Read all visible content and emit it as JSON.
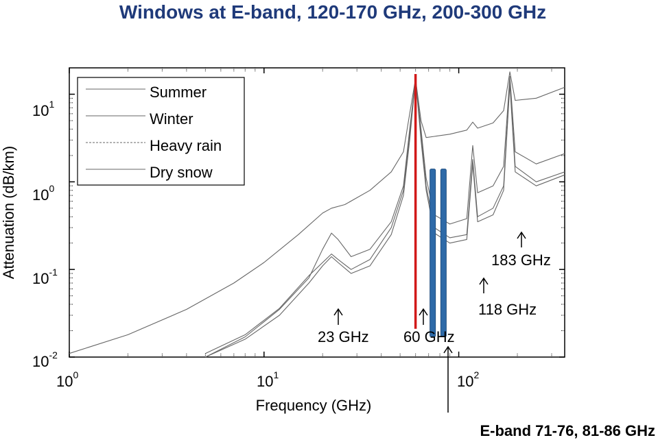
{
  "chart_data": {
    "type": "line",
    "title": "Windows at E-band, 120-170 GHz, 200-300 GHz",
    "xlabel": "Frequency (GHz)",
    "ylabel": "Attenuation (dB/km)",
    "x_scale": "log",
    "y_scale": "log",
    "xlim": [
      1,
      350
    ],
    "ylim": [
      0.01,
      20
    ],
    "x_ticks": [
      {
        "value": 1,
        "base": "10",
        "exp": "0"
      },
      {
        "value": 10,
        "base": "10",
        "exp": "1"
      },
      {
        "value": 100,
        "base": "10",
        "exp": "2"
      }
    ],
    "y_ticks": [
      {
        "value": 0.01,
        "base": "10",
        "exp": "-2"
      },
      {
        "value": 0.1,
        "base": "10",
        "exp": "-1"
      },
      {
        "value": 1,
        "base": "10",
        "exp": "0"
      },
      {
        "value": 10,
        "base": "10",
        "exp": "1"
      }
    ],
    "legend": {
      "placement": "top-left",
      "entries": [
        "Summer",
        "Winter",
        "Heavy rain",
        "Dry snow"
      ]
    },
    "series": [
      {
        "name": "Summer",
        "color": "#666666",
        "x": [
          1,
          2,
          4,
          7,
          10,
          15,
          20,
          22.2,
          26,
          35,
          45,
          52,
          56,
          60,
          64,
          68,
          75,
          90,
          110,
          118,
          125,
          150,
          170,
          183,
          195,
          250,
          350
        ],
        "y": [
          0.011,
          0.018,
          0.035,
          0.07,
          0.12,
          0.25,
          0.44,
          0.5,
          0.55,
          0.8,
          1.3,
          2.2,
          6,
          15,
          5,
          3.2,
          3.3,
          3.5,
          3.9,
          4.8,
          4.1,
          4.7,
          6.5,
          18,
          8.5,
          9,
          12
        ]
      },
      {
        "name": "Winter",
        "color": "#666666",
        "x": [
          5,
          8,
          12,
          17,
          20,
          22.2,
          24,
          28,
          35,
          45,
          52,
          56,
          60,
          64,
          68,
          75,
          90,
          110,
          118,
          125,
          150,
          170,
          183,
          195,
          250,
          350
        ],
        "y": [
          0.01,
          0.017,
          0.035,
          0.08,
          0.17,
          0.26,
          0.22,
          0.14,
          0.17,
          0.35,
          0.9,
          4,
          15,
          4,
          1.1,
          0.42,
          0.33,
          0.38,
          2.6,
          0.75,
          0.9,
          1.5,
          16,
          2.2,
          1.6,
          2.1
        ]
      },
      {
        "name": "Heavy rain",
        "color": "#666666",
        "x": [
          5,
          8,
          12,
          17,
          20,
          22.2,
          24,
          28,
          35,
          45,
          52,
          56,
          60,
          64,
          68,
          75,
          90,
          110,
          118,
          125,
          150,
          170,
          183,
          195,
          250,
          350
        ],
        "y": [
          0.011,
          0.018,
          0.036,
          0.085,
          0.12,
          0.15,
          0.13,
          0.1,
          0.13,
          0.3,
          0.8,
          3.5,
          15,
          3.5,
          0.9,
          0.3,
          0.23,
          0.25,
          1.8,
          0.4,
          0.5,
          0.9,
          14,
          1.5,
          1.0,
          1.3
        ]
      },
      {
        "name": "Dry snow",
        "color": "#666666",
        "x": [
          5,
          8,
          12,
          17,
          20,
          22.2,
          24,
          28,
          35,
          45,
          52,
          56,
          60,
          64,
          68,
          75,
          90,
          110,
          118,
          125,
          150,
          170,
          183,
          195,
          250,
          350
        ],
        "y": [
          0.01,
          0.016,
          0.03,
          0.07,
          0.11,
          0.14,
          0.12,
          0.09,
          0.11,
          0.25,
          0.7,
          3,
          15,
          3,
          0.8,
          0.26,
          0.2,
          0.22,
          1.6,
          0.35,
          0.42,
          0.8,
          13,
          1.3,
          0.9,
          1.2
        ]
      }
    ],
    "bands": [
      {
        "kind": "line",
        "color": "#d11919",
        "x": 60,
        "y_from": 0.021,
        "y_to": 17
      },
      {
        "kind": "bar",
        "color": "#2e6aa8",
        "x": 73.5,
        "y_from": 0.017,
        "y_to": 1.4
      },
      {
        "kind": "bar",
        "color": "#2e6aa8",
        "x": 83.5,
        "y_from": 0.017,
        "y_to": 1.4
      }
    ],
    "annotations": [
      {
        "text": "23 GHz",
        "x": 23
      },
      {
        "text": "60 GHz",
        "x": 60
      },
      {
        "text": "118 GHz",
        "x": 118
      },
      {
        "text": "183 GHz",
        "x": 183
      }
    ],
    "callout": {
      "text": "E-band 71-76, 81-86 GHz"
    }
  }
}
